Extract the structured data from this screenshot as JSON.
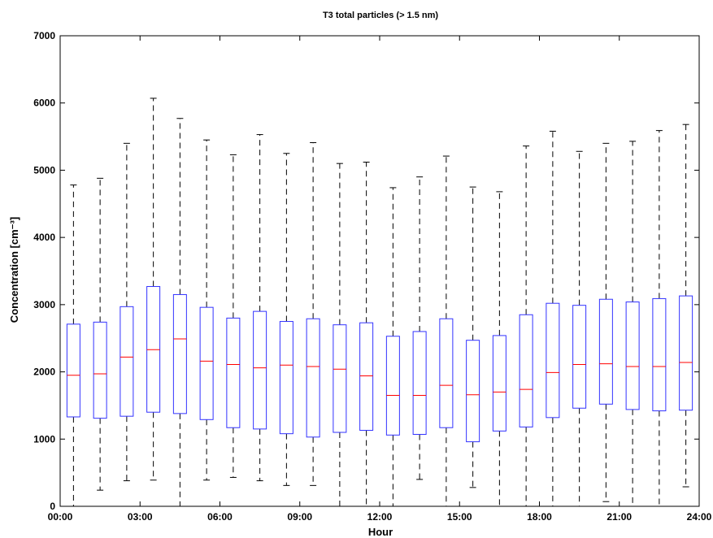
{
  "chart_data": {
    "type": "box",
    "title": "T3 total particles (> 1.5 nm)",
    "xlabel": "Hour",
    "ylabel": "Concentration [cm⁻³]",
    "ylim": [
      0,
      7000
    ],
    "xlim_hours": [
      0,
      24
    ],
    "yticks": [
      0,
      1000,
      2000,
      3000,
      4000,
      5000,
      6000,
      7000
    ],
    "xticks": [
      "00:00",
      "03:00",
      "06:00",
      "09:00",
      "12:00",
      "15:00",
      "18:00",
      "21:00",
      "24:00"
    ],
    "grid": false,
    "colors": {
      "box": "#3333ff",
      "median": "#ff0000",
      "whisker": "#000000"
    },
    "boxes": [
      {
        "hour": 0.5,
        "whisker_low": 0,
        "q1": 1330,
        "median": 1950,
        "q3": 2710,
        "whisker_high": 4780
      },
      {
        "hour": 1.5,
        "whisker_low": 240,
        "q1": 1310,
        "median": 1970,
        "q3": 2740,
        "whisker_high": 4880
      },
      {
        "hour": 2.5,
        "whisker_low": 380,
        "q1": 1340,
        "median": 2220,
        "q3": 2970,
        "whisker_high": 5400
      },
      {
        "hour": 3.5,
        "whisker_low": 390,
        "q1": 1400,
        "median": 2330,
        "q3": 3270,
        "whisker_high": 6070
      },
      {
        "hour": 4.5,
        "whisker_low": 0,
        "q1": 1380,
        "median": 2490,
        "q3": 3150,
        "whisker_high": 5770
      },
      {
        "hour": 5.5,
        "whisker_low": 390,
        "q1": 1290,
        "median": 2160,
        "q3": 2960,
        "whisker_high": 5450
      },
      {
        "hour": 6.5,
        "whisker_low": 430,
        "q1": 1170,
        "median": 2110,
        "q3": 2800,
        "whisker_high": 5230
      },
      {
        "hour": 7.5,
        "whisker_low": 380,
        "q1": 1150,
        "median": 2060,
        "q3": 2900,
        "whisker_high": 5530
      },
      {
        "hour": 8.5,
        "whisker_low": 310,
        "q1": 1080,
        "median": 2100,
        "q3": 2750,
        "whisker_high": 5250
      },
      {
        "hour": 9.5,
        "whisker_low": 310,
        "q1": 1030,
        "median": 2080,
        "q3": 2790,
        "whisker_high": 5410
      },
      {
        "hour": 10.5,
        "whisker_low": 0,
        "q1": 1100,
        "median": 2040,
        "q3": 2700,
        "whisker_high": 5100
      },
      {
        "hour": 11.5,
        "whisker_low": 0,
        "q1": 1130,
        "median": 1940,
        "q3": 2730,
        "whisker_high": 5120
      },
      {
        "hour": 12.5,
        "whisker_low": 0,
        "q1": 1060,
        "median": 1650,
        "q3": 2530,
        "whisker_high": 4740
      },
      {
        "hour": 13.5,
        "whisker_low": 400,
        "q1": 1070,
        "median": 1650,
        "q3": 2600,
        "whisker_high": 4900
      },
      {
        "hour": 14.5,
        "whisker_low": 0,
        "q1": 1170,
        "median": 1800,
        "q3": 2790,
        "whisker_high": 5210
      },
      {
        "hour": 15.5,
        "whisker_low": 280,
        "q1": 960,
        "median": 1660,
        "q3": 2470,
        "whisker_high": 4750
      },
      {
        "hour": 16.5,
        "whisker_low": 0,
        "q1": 1120,
        "median": 1700,
        "q3": 2540,
        "whisker_high": 4680
      },
      {
        "hour": 17.5,
        "whisker_low": 0,
        "q1": 1180,
        "median": 1740,
        "q3": 2850,
        "whisker_high": 5360
      },
      {
        "hour": 18.5,
        "whisker_low": 0,
        "q1": 1320,
        "median": 1990,
        "q3": 3020,
        "whisker_high": 5580
      },
      {
        "hour": 19.5,
        "whisker_low": 0,
        "q1": 1460,
        "median": 2110,
        "q3": 2990,
        "whisker_high": 5280
      },
      {
        "hour": 20.5,
        "whisker_low": 70,
        "q1": 1520,
        "median": 2120,
        "q3": 3080,
        "whisker_high": 5400
      },
      {
        "hour": 21.5,
        "whisker_low": 0,
        "q1": 1440,
        "median": 2080,
        "q3": 3040,
        "whisker_high": 5430
      },
      {
        "hour": 22.5,
        "whisker_low": 0,
        "q1": 1420,
        "median": 2080,
        "q3": 3090,
        "whisker_high": 5590
      },
      {
        "hour": 23.5,
        "whisker_low": 290,
        "q1": 1430,
        "median": 2140,
        "q3": 3130,
        "whisker_high": 5680
      }
    ]
  }
}
